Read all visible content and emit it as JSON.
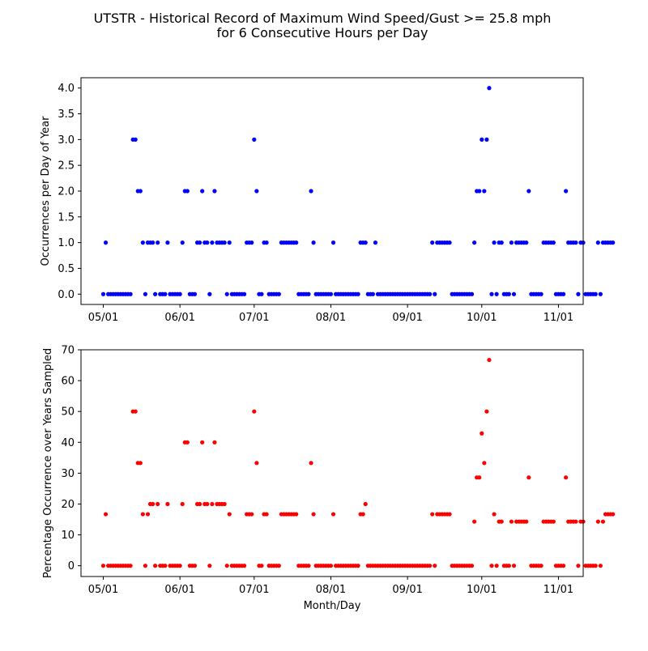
{
  "title": {
    "line1": "UTSTR - Historical Record of Maximum Wind Speed/Gust >= 25.8 mph",
    "line2": "for 6 Consecutive Hours per Day"
  },
  "chart_data": [
    {
      "type": "scatter",
      "xlabel": "",
      "ylabel": "Occurrences per Day of Year",
      "color": "#0000ff",
      "x_ticks": [
        "05/01",
        "06/01",
        "07/01",
        "08/01",
        "09/01",
        "10/01",
        "11/01"
      ],
      "x_tick_days": [
        0,
        31,
        61,
        92,
        123,
        153,
        184
      ],
      "x_range_days": [
        -9,
        194
      ],
      "ylim": [
        -0.2,
        4.2
      ],
      "y_ticks": [
        "0.0",
        "0.5",
        "1.0",
        "1.5",
        "2.0",
        "2.5",
        "3.0",
        "3.5",
        "4.0"
      ],
      "y_tick_values": [
        0,
        0.5,
        1,
        1.5,
        2,
        2.5,
        3,
        3.5,
        4
      ],
      "values": [
        0,
        1,
        0,
        0,
        0,
        0,
        0,
        0,
        0,
        0,
        0,
        0,
        3,
        3,
        2,
        2,
        1,
        0,
        1,
        1,
        1,
        0,
        1,
        0,
        0,
        0,
        1,
        0,
        0,
        0,
        0,
        0,
        1,
        2,
        2,
        0,
        0,
        0,
        1,
        1,
        2,
        1,
        1,
        0,
        1,
        2,
        1,
        1,
        1,
        1,
        0,
        1,
        0,
        0,
        0,
        0,
        0,
        0,
        1,
        1,
        1,
        3,
        2,
        0,
        0,
        1,
        1,
        0,
        0,
        0,
        0,
        0,
        1,
        1,
        1,
        1,
        1,
        1,
        1,
        0,
        0,
        0,
        0,
        0,
        2,
        1,
        0,
        0,
        0,
        0,
        0,
        0,
        0,
        1,
        0,
        0,
        0,
        0,
        0,
        0,
        0,
        0,
        0,
        0,
        1,
        1,
        1,
        0,
        0,
        0,
        1,
        0,
        0,
        0,
        0,
        0,
        0,
        0,
        0,
        0,
        0,
        0,
        0,
        0,
        0,
        0,
        0,
        0,
        0,
        0,
        0,
        0,
        0,
        1,
        0,
        1,
        1,
        1,
        1,
        1,
        1,
        0,
        0,
        0,
        0,
        0,
        0,
        0,
        0,
        0,
        1,
        2,
        2,
        3,
        2,
        3,
        4,
        0,
        1,
        0,
        1,
        1,
        0,
        0,
        0,
        1,
        0,
        1,
        1,
        1,
        1,
        1,
        2,
        0,
        0,
        0,
        0,
        0,
        1,
        1,
        1,
        1,
        1,
        0,
        0,
        0,
        0,
        2,
        1,
        1,
        1,
        1,
        0,
        1,
        1,
        0,
        0,
        0,
        0,
        0,
        1,
        0,
        1,
        1,
        1,
        1,
        1
      ]
    },
    {
      "type": "scatter",
      "xlabel": "Month/Day",
      "ylabel": "Percentage Occurrence over Years Sampled",
      "color": "#ff0000",
      "x_ticks": [
        "05/01",
        "06/01",
        "07/01",
        "08/01",
        "09/01",
        "10/01",
        "11/01"
      ],
      "x_tick_days": [
        0,
        31,
        61,
        92,
        123,
        153,
        184
      ],
      "x_range_days": [
        -9,
        194
      ],
      "ylim": [
        -3.5,
        70
      ],
      "y_ticks": [
        "0",
        "10",
        "20",
        "30",
        "40",
        "50",
        "60",
        "70"
      ],
      "y_tick_values": [
        0,
        10,
        20,
        30,
        40,
        50,
        60,
        70
      ],
      "values": [
        0,
        16.7,
        0,
        0,
        0,
        0,
        0,
        0,
        0,
        0,
        0,
        0,
        50,
        50,
        33.3,
        33.3,
        16.7,
        0,
        16.7,
        20,
        20,
        0,
        20,
        0,
        0,
        0,
        20,
        0,
        0,
        0,
        0,
        0,
        20,
        40,
        40,
        0,
        0,
        0,
        20,
        20,
        40,
        20,
        20,
        0,
        20,
        40,
        20,
        20,
        20,
        20,
        0,
        16.7,
        0,
        0,
        0,
        0,
        0,
        0,
        16.7,
        16.7,
        16.7,
        50,
        33.3,
        0,
        0,
        16.7,
        16.7,
        0,
        0,
        0,
        0,
        0,
        16.7,
        16.7,
        16.7,
        16.7,
        16.7,
        16.7,
        16.7,
        0,
        0,
        0,
        0,
        0,
        33.3,
        16.7,
        0,
        0,
        0,
        0,
        0,
        0,
        0,
        16.7,
        0,
        0,
        0,
        0,
        0,
        0,
        0,
        0,
        0,
        0,
        16.7,
        16.7,
        20,
        0,
        0,
        0,
        0,
        0,
        0,
        0,
        0,
        0,
        0,
        0,
        0,
        0,
        0,
        0,
        0,
        0,
        0,
        0,
        0,
        0,
        0,
        0,
        0,
        0,
        0,
        16.7,
        0,
        16.7,
        16.7,
        16.7,
        16.7,
        16.7,
        16.7,
        0,
        0,
        0,
        0,
        0,
        0,
        0,
        0,
        0,
        14.3,
        28.6,
        28.6,
        42.9,
        33.3,
        50,
        66.7,
        0,
        16.7,
        0,
        14.3,
        14.3,
        0,
        0,
        0,
        14.3,
        0,
        14.3,
        14.3,
        14.3,
        14.3,
        14.3,
        28.6,
        0,
        0,
        0,
        0,
        0,
        14.3,
        14.3,
        14.3,
        14.3,
        14.3,
        0,
        0,
        0,
        0,
        28.6,
        14.3,
        14.3,
        14.3,
        14.3,
        0,
        14.3,
        14.3,
        0,
        0,
        0,
        0,
        0,
        14.3,
        0,
        14.3,
        16.7,
        16.7,
        16.7,
        16.7
      ]
    }
  ]
}
